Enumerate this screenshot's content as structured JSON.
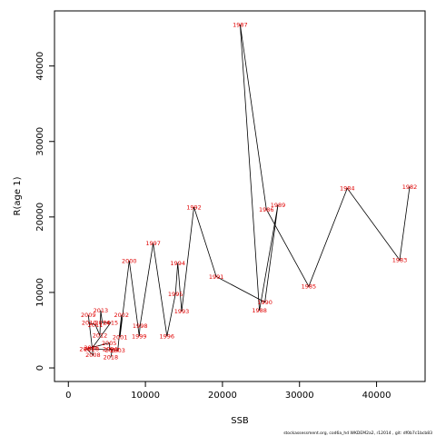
{
  "chart_data": {
    "type": "line",
    "xlabel": "SSB",
    "ylabel": "R(age 1)",
    "xlim": [
      -1800,
      46300
    ],
    "ylim": [
      -1800,
      47300
    ],
    "xticks": [
      0,
      10000,
      20000,
      30000,
      40000
    ],
    "yticks": [
      0,
      10000,
      20000,
      30000,
      40000
    ],
    "grid": false,
    "series": [
      {
        "points": [
          {
            "year": "1982",
            "x": 44300,
            "y": 24000
          },
          {
            "year": "1983",
            "x": 43000,
            "y": 14300
          },
          {
            "year": "1984",
            "x": 36200,
            "y": 23800
          },
          {
            "year": "1985",
            "x": 31200,
            "y": 10800
          },
          {
            "year": "1986",
            "x": 25700,
            "y": 21000
          },
          {
            "year": "1987",
            "x": 22300,
            "y": 45500
          },
          {
            "year": "1988",
            "x": 24800,
            "y": 7600
          },
          {
            "year": "1989",
            "x": 27200,
            "y": 21600
          },
          {
            "year": "1990",
            "x": 25500,
            "y": 8700
          },
          {
            "year": "1991",
            "x": 19200,
            "y": 12100
          },
          {
            "year": "1992",
            "x": 16300,
            "y": 21300
          },
          {
            "year": "1993",
            "x": 14700,
            "y": 7500
          },
          {
            "year": "1994",
            "x": 14200,
            "y": 13900
          },
          {
            "year": "1995",
            "x": 13900,
            "y": 9800
          },
          {
            "year": "1996",
            "x": 12800,
            "y": 4200
          },
          {
            "year": "1997",
            "x": 11000,
            "y": 16500
          },
          {
            "year": "1998",
            "x": 9300,
            "y": 5600
          },
          {
            "year": "1999",
            "x": 9200,
            "y": 4200
          },
          {
            "year": "2000",
            "x": 7900,
            "y": 14200
          },
          {
            "year": "2001",
            "x": 6700,
            "y": 4100
          },
          {
            "year": "2002",
            "x": 6900,
            "y": 7000
          },
          {
            "year": "2003",
            "x": 6400,
            "y": 2300
          },
          {
            "year": "2004",
            "x": 5400,
            "y": 2500
          },
          {
            "year": "2005",
            "x": 5300,
            "y": 3300
          },
          {
            "year": "2006",
            "x": 3000,
            "y": 2700
          },
          {
            "year": "2007",
            "x": 2400,
            "y": 2500
          },
          {
            "year": "2008",
            "x": 3200,
            "y": 1700
          },
          {
            "year": "2009",
            "x": 2600,
            "y": 7000
          },
          {
            "year": "2010",
            "x": 2700,
            "y": 6000
          },
          {
            "year": "2011",
            "x": 3500,
            "y": 5700
          },
          {
            "year": "2012",
            "x": 4100,
            "y": 4300
          },
          {
            "year": "2013",
            "x": 4200,
            "y": 7600
          },
          {
            "year": "2014",
            "x": 4400,
            "y": 6000
          },
          {
            "year": "2015",
            "x": 5500,
            "y": 6000
          },
          {
            "year": "2016",
            "x": 3000,
            "y": 2500
          },
          {
            "year": "2017",
            "x": 5700,
            "y": 2400
          },
          {
            "year": "2018",
            "x": 5500,
            "y": 1400
          }
        ]
      }
    ]
  },
  "footer": {
    "credit": "stockassessment.org,  cod6a_hd  WKDEM2a2,  r12014  ,  git:  df0b7c1bcb83"
  }
}
